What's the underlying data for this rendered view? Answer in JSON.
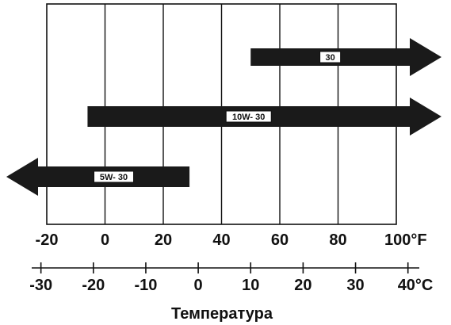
{
  "chart_data": {
    "type": "bar",
    "subtype": "range-arrows",
    "title": "",
    "xlabel": "Температура",
    "fahrenheit_axis": {
      "ticks": [
        -20,
        0,
        20,
        40,
        60,
        80,
        100
      ],
      "tick_labels": [
        "-20",
        "0",
        "20",
        "40",
        "60",
        "80",
        "100°F"
      ],
      "range": [
        -20,
        100
      ],
      "grid": true
    },
    "celsius_axis": {
      "ticks": [
        -30,
        -20,
        -10,
        0,
        10,
        20,
        30,
        40
      ],
      "tick_labels": [
        "-30",
        "-20",
        "-10",
        "0",
        "10",
        "20",
        "30",
        "40°C"
      ]
    },
    "series": [
      {
        "name": "30",
        "start_f": 50,
        "direction": "right",
        "open_end": true
      },
      {
        "name": "10W- 30",
        "start_f": -6,
        "direction": "right",
        "open_end": true
      },
      {
        "name": "5W- 30",
        "end_f": 29,
        "direction": "left",
        "open_end": true
      }
    ],
    "colors": {
      "arrow": "#1a1a1a",
      "label_box": "#ffffff",
      "grid": "#111111"
    }
  }
}
